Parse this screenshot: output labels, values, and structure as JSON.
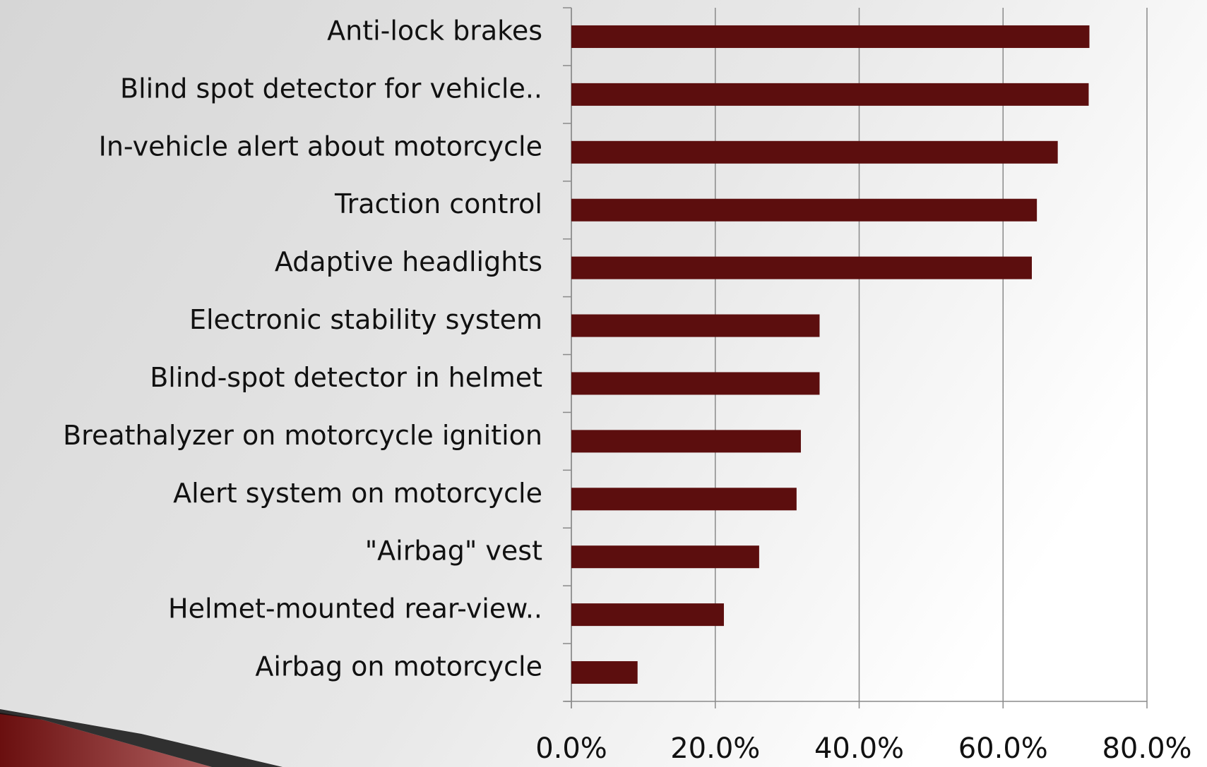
{
  "chart_data": {
    "type": "barh",
    "categories": [
      "Anti-lock brakes",
      "Blind spot detector for vehicle..",
      "In-vehicle alert about motorcycle",
      "Traction control",
      "Adaptive headlights",
      "Electronic stability system",
      "Blind-spot detector in helmet",
      "Breathalyzer on motorcycle ignition",
      "Alert system on motorcycle",
      "\"Airbag\" vest",
      "Helmet-mounted rear-view..",
      "Airbag on motorcycle"
    ],
    "values": [
      72.0,
      71.9,
      67.6,
      64.7,
      64.0,
      34.5,
      34.5,
      31.9,
      31.3,
      26.1,
      21.2,
      9.2
    ],
    "color": "#5c0e0e",
    "xlim": [
      0,
      80
    ],
    "xticks": [
      {
        "value": 0,
        "label": "0.0%"
      },
      {
        "value": 20,
        "label": "20.0%"
      },
      {
        "value": 40,
        "label": "40.0%"
      },
      {
        "value": 60,
        "label": "60.0%"
      },
      {
        "value": 80,
        "label": "80.0%"
      }
    ],
    "grid": true
  }
}
